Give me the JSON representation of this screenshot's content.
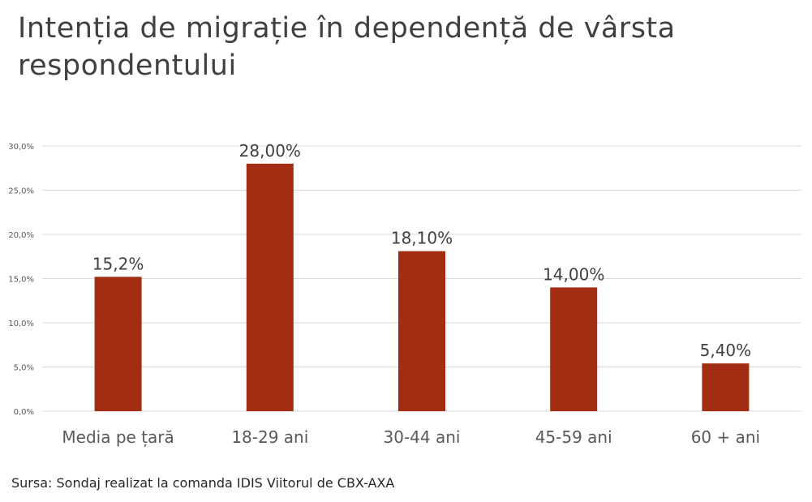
{
  "chart_data": {
    "type": "bar",
    "title": "Intenția de migrație în dependență de vârsta respondentului",
    "categories": [
      "Media pe țară",
      "18-29 ani",
      "30-44 ani",
      "45-59 ani",
      "60 + ani"
    ],
    "values": [
      15.2,
      28.0,
      18.1,
      14.0,
      5.4
    ],
    "data_labels": [
      "15,2%",
      "28,00%",
      "18,10%",
      "14,00%",
      "5,40%"
    ],
    "yticks": [
      "0,0%",
      "5,0%",
      "10,0%",
      "15,0%",
      "20,0%",
      "25,0%",
      "30,0%"
    ],
    "ytick_values": [
      0,
      5,
      10,
      15,
      20,
      25,
      30
    ],
    "ylim": [
      0,
      30
    ],
    "xlabel": "",
    "ylabel": "",
    "grid": true,
    "bar_color": "#A32D12"
  },
  "source": "Sursa: Sondaj realizat la comanda IDIS Viitorul de CBX-AXA"
}
